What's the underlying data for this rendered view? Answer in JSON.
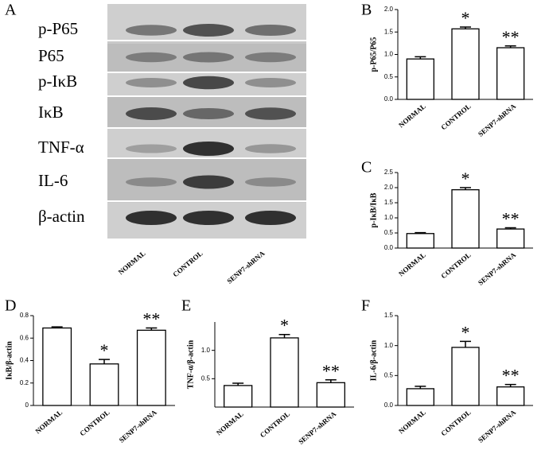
{
  "blot": {
    "panel": "A",
    "rows": [
      "p-P65",
      "P65",
      "p-IκB",
      "IκB",
      "TNF-α",
      "IL-6",
      "β-actin"
    ],
    "lanes": [
      "NORMAL",
      "CONTROL",
      "SENP7-shRNA"
    ]
  },
  "chart_data": [
    {
      "type": "bar",
      "panel": "B",
      "y_label": "p-P65/P65",
      "categories": [
        "NORMAL",
        "CONTROL",
        "SENP7-shRNA"
      ],
      "values": [
        0.9,
        1.57,
        1.15
      ],
      "errors": [
        0.05,
        0.04,
        0.04
      ],
      "annotations": [
        {
          "category": "CONTROL",
          "text": "*"
        },
        {
          "category": "SENP7-shRNA",
          "text": "**"
        }
      ],
      "ylim": [
        0,
        2
      ],
      "yticks": [
        {
          "value": 0,
          "label": "0.0"
        },
        0.5,
        {
          "value": 1,
          "label": "1.0"
        },
        1.5,
        {
          "value": 2,
          "label": "2.0"
        }
      ],
      "color": "#ffffff"
    },
    {
      "type": "bar",
      "panel": "C",
      "y_label": "p-IκB/IκB",
      "categories": [
        "NORMAL",
        "CONTROL",
        "SENP7-shRNA"
      ],
      "values": [
        0.48,
        1.93,
        0.63
      ],
      "errors": [
        0.03,
        0.07,
        0.04
      ],
      "annotations": [
        {
          "category": "CONTROL",
          "text": "*"
        },
        {
          "category": "SENP7-shRNA",
          "text": "**"
        }
      ],
      "ylim": [
        0,
        2.5
      ],
      "yticks": [
        {
          "value": 0,
          "label": "0.0"
        },
        0.5,
        {
          "value": 1,
          "label": "1.0"
        },
        1.5,
        {
          "value": 2,
          "label": "2.0"
        },
        2.5
      ],
      "color": "#ffffff"
    },
    {
      "type": "bar",
      "panel": "D",
      "y_label": "IκB/β-actin",
      "categories": [
        "NORMAL",
        "CONTROL",
        "SENP7-shRNA"
      ],
      "values": [
        0.69,
        0.37,
        0.67
      ],
      "errors": [
        0.01,
        0.04,
        0.02
      ],
      "annotations": [
        {
          "category": "CONTROL",
          "text": "*"
        },
        {
          "category": "SENP7-shRNA",
          "text": "**"
        }
      ],
      "ylim": [
        0,
        0.8
      ],
      "yticks": [
        0,
        0.2,
        0.4,
        0.6,
        0.8
      ],
      "color": "#ffffff"
    },
    {
      "type": "bar",
      "panel": "E",
      "y_label": "TNF-α/β-actin",
      "categories": [
        "NORMAL",
        "CONTROL",
        "SENP7-shRNA"
      ],
      "values": [
        0.38,
        1.22,
        0.43
      ],
      "errors": [
        0.04,
        0.06,
        0.05
      ],
      "annotations": [
        {
          "category": "CONTROL",
          "text": "*"
        },
        {
          "category": "SENP7-shRNA",
          "text": "**"
        }
      ],
      "ylim": [
        0,
        1.5
      ],
      "yticks": [
        0.5,
        {
          "value": 1,
          "label": "1.0"
        }
      ],
      "color": "#ffffff"
    },
    {
      "type": "bar",
      "panel": "F",
      "y_label": "IL-6/β-actin",
      "categories": [
        "NORMAL",
        "CONTROL",
        "SENP7-shRNA"
      ],
      "values": [
        0.28,
        0.97,
        0.31
      ],
      "errors": [
        0.04,
        0.1,
        0.04
      ],
      "annotations": [
        {
          "category": "CONTROL",
          "text": "*"
        },
        {
          "category": "SENP7-shRNA",
          "text": "**"
        }
      ],
      "ylim": [
        0,
        1.5
      ],
      "yticks": [
        {
          "value": 0,
          "label": "0.0"
        },
        0.5,
        {
          "value": 1,
          "label": "1.0"
        },
        1.5
      ],
      "color": "#ffffff"
    }
  ]
}
